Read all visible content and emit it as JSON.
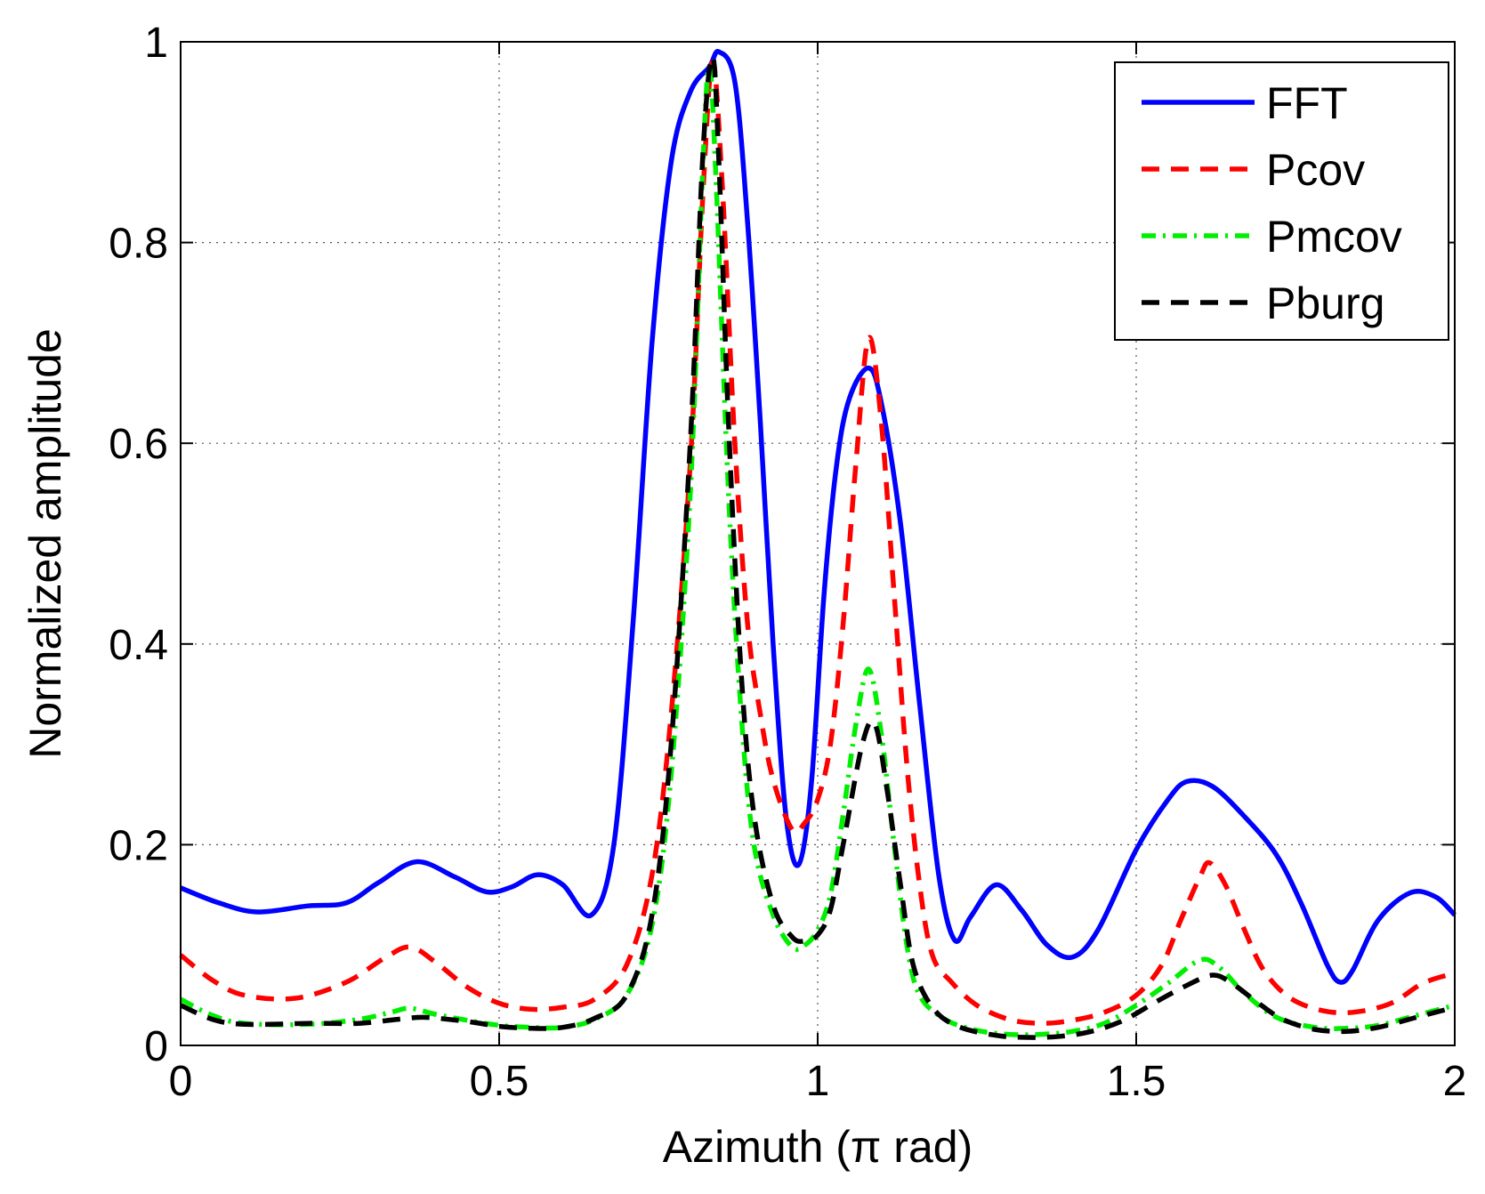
{
  "chart_data": {
    "type": "line",
    "title": "",
    "xlabel": "Azimuth (π rad)",
    "ylabel": "Normalized amplitude",
    "xlim": [
      0,
      2
    ],
    "ylim": [
      0,
      1
    ],
    "xticks": [
      0,
      0.5,
      1,
      1.5,
      2
    ],
    "yticks": [
      0,
      0.2,
      0.4,
      0.6,
      0.8,
      1
    ],
    "xtick_labels": [
      "0",
      "0.5",
      "1",
      "1.5",
      "2"
    ],
    "ytick_labels": [
      "0",
      "0.2",
      "0.4",
      "0.6",
      "0.8",
      "1"
    ],
    "grid": true,
    "legend_position": "top-right",
    "series": [
      {
        "name": "FFT",
        "color": "#0000ff",
        "style": "solid",
        "points": [
          [
            0,
            0.157
          ],
          [
            0.06,
            0.142
          ],
          [
            0.12,
            0.133
          ],
          [
            0.2,
            0.139
          ],
          [
            0.26,
            0.142
          ],
          [
            0.31,
            0.162
          ],
          [
            0.37,
            0.183
          ],
          [
            0.43,
            0.168
          ],
          [
            0.48,
            0.153
          ],
          [
            0.52,
            0.158
          ],
          [
            0.56,
            0.17
          ],
          [
            0.6,
            0.16
          ],
          [
            0.645,
            0.13
          ],
          [
            0.68,
            0.2
          ],
          [
            0.71,
            0.42
          ],
          [
            0.74,
            0.7
          ],
          [
            0.77,
            0.88
          ],
          [
            0.8,
            0.95
          ],
          [
            0.83,
            0.975
          ],
          [
            0.845,
            0.99
          ],
          [
            0.87,
            0.96
          ],
          [
            0.89,
            0.82
          ],
          [
            0.91,
            0.62
          ],
          [
            0.93,
            0.4
          ],
          [
            0.95,
            0.23
          ],
          [
            0.97,
            0.18
          ],
          [
            0.99,
            0.26
          ],
          [
            1.01,
            0.45
          ],
          [
            1.03,
            0.58
          ],
          [
            1.05,
            0.645
          ],
          [
            1.08,
            0.675
          ],
          [
            1.1,
            0.64
          ],
          [
            1.13,
            0.52
          ],
          [
            1.16,
            0.34
          ],
          [
            1.19,
            0.17
          ],
          [
            1.215,
            0.105
          ],
          [
            1.24,
            0.128
          ],
          [
            1.28,
            0.16
          ],
          [
            1.32,
            0.135
          ],
          [
            1.36,
            0.1
          ],
          [
            1.4,
            0.088
          ],
          [
            1.44,
            0.115
          ],
          [
            1.5,
            0.195
          ],
          [
            1.55,
            0.245
          ],
          [
            1.58,
            0.263
          ],
          [
            1.62,
            0.258
          ],
          [
            1.67,
            0.228
          ],
          [
            1.72,
            0.19
          ],
          [
            1.76,
            0.14
          ],
          [
            1.8,
            0.08
          ],
          [
            1.82,
            0.063
          ],
          [
            1.84,
            0.075
          ],
          [
            1.88,
            0.125
          ],
          [
            1.93,
            0.152
          ],
          [
            1.97,
            0.148
          ],
          [
            2,
            0.13
          ]
        ]
      },
      {
        "name": "Pcov",
        "color": "#ff0000",
        "style": "dashed",
        "points": [
          [
            0,
            0.09
          ],
          [
            0.05,
            0.065
          ],
          [
            0.1,
            0.05
          ],
          [
            0.18,
            0.047
          ],
          [
            0.26,
            0.063
          ],
          [
            0.32,
            0.087
          ],
          [
            0.36,
            0.098
          ],
          [
            0.4,
            0.083
          ],
          [
            0.45,
            0.058
          ],
          [
            0.5,
            0.042
          ],
          [
            0.55,
            0.036
          ],
          [
            0.6,
            0.038
          ],
          [
            0.65,
            0.046
          ],
          [
            0.7,
            0.08
          ],
          [
            0.74,
            0.17
          ],
          [
            0.77,
            0.33
          ],
          [
            0.8,
            0.58
          ],
          [
            0.82,
            0.85
          ],
          [
            0.835,
            0.98
          ],
          [
            0.85,
            0.86
          ],
          [
            0.87,
            0.6
          ],
          [
            0.89,
            0.42
          ],
          [
            0.91,
            0.33
          ],
          [
            0.93,
            0.265
          ],
          [
            0.96,
            0.215
          ],
          [
            0.98,
            0.222
          ],
          [
            1.0,
            0.245
          ],
          [
            1.02,
            0.3
          ],
          [
            1.04,
            0.42
          ],
          [
            1.06,
            0.58
          ],
          [
            1.08,
            0.705
          ],
          [
            1.1,
            0.62
          ],
          [
            1.12,
            0.45
          ],
          [
            1.14,
            0.28
          ],
          [
            1.16,
            0.16
          ],
          [
            1.18,
            0.09
          ],
          [
            1.21,
            0.063
          ],
          [
            1.25,
            0.04
          ],
          [
            1.3,
            0.026
          ],
          [
            1.35,
            0.022
          ],
          [
            1.4,
            0.025
          ],
          [
            1.45,
            0.033
          ],
          [
            1.5,
            0.05
          ],
          [
            1.54,
            0.08
          ],
          [
            1.57,
            0.125
          ],
          [
            1.6,
            0.168
          ],
          [
            1.615,
            0.182
          ],
          [
            1.64,
            0.16
          ],
          [
            1.67,
            0.115
          ],
          [
            1.7,
            0.075
          ],
          [
            1.74,
            0.048
          ],
          [
            1.79,
            0.035
          ],
          [
            1.84,
            0.033
          ],
          [
            1.9,
            0.042
          ],
          [
            1.95,
            0.062
          ],
          [
            2,
            0.072
          ]
        ]
      },
      {
        "name": "Pmcov",
        "color": "#00ee00",
        "style": "dashdot",
        "points": [
          [
            0,
            0.046
          ],
          [
            0.05,
            0.03
          ],
          [
            0.1,
            0.022
          ],
          [
            0.2,
            0.021
          ],
          [
            0.28,
            0.026
          ],
          [
            0.33,
            0.033
          ],
          [
            0.36,
            0.037
          ],
          [
            0.4,
            0.031
          ],
          [
            0.45,
            0.025
          ],
          [
            0.5,
            0.02
          ],
          [
            0.55,
            0.018
          ],
          [
            0.6,
            0.018
          ],
          [
            0.65,
            0.026
          ],
          [
            0.7,
            0.05
          ],
          [
            0.74,
            0.12
          ],
          [
            0.77,
            0.27
          ],
          [
            0.8,
            0.55
          ],
          [
            0.82,
            0.88
          ],
          [
            0.83,
            0.975
          ],
          [
            0.84,
            0.87
          ],
          [
            0.86,
            0.55
          ],
          [
            0.88,
            0.33
          ],
          [
            0.9,
            0.2
          ],
          [
            0.93,
            0.13
          ],
          [
            0.96,
            0.098
          ],
          [
            0.98,
            0.1
          ],
          [
            1.0,
            0.115
          ],
          [
            1.02,
            0.15
          ],
          [
            1.04,
            0.23
          ],
          [
            1.06,
            0.32
          ],
          [
            1.08,
            0.375
          ],
          [
            1.1,
            0.31
          ],
          [
            1.12,
            0.2
          ],
          [
            1.14,
            0.1
          ],
          [
            1.16,
            0.05
          ],
          [
            1.2,
            0.026
          ],
          [
            1.25,
            0.015
          ],
          [
            1.3,
            0.011
          ],
          [
            1.35,
            0.011
          ],
          [
            1.4,
            0.014
          ],
          [
            1.45,
            0.022
          ],
          [
            1.5,
            0.04
          ],
          [
            1.55,
            0.062
          ],
          [
            1.6,
            0.085
          ],
          [
            1.63,
            0.078
          ],
          [
            1.67,
            0.052
          ],
          [
            1.72,
            0.028
          ],
          [
            1.78,
            0.018
          ],
          [
            1.83,
            0.017
          ],
          [
            1.88,
            0.02
          ],
          [
            1.94,
            0.03
          ],
          [
            2,
            0.04
          ]
        ]
      },
      {
        "name": "Pburg",
        "color": "#000000",
        "style": "dashed",
        "points": [
          [
            0,
            0.04
          ],
          [
            0.05,
            0.026
          ],
          [
            0.1,
            0.021
          ],
          [
            0.2,
            0.022
          ],
          [
            0.28,
            0.022
          ],
          [
            0.34,
            0.026
          ],
          [
            0.38,
            0.028
          ],
          [
            0.42,
            0.026
          ],
          [
            0.46,
            0.023
          ],
          [
            0.5,
            0.019
          ],
          [
            0.55,
            0.017
          ],
          [
            0.6,
            0.018
          ],
          [
            0.65,
            0.027
          ],
          [
            0.7,
            0.05
          ],
          [
            0.74,
            0.13
          ],
          [
            0.77,
            0.3
          ],
          [
            0.8,
            0.6
          ],
          [
            0.82,
            0.89
          ],
          [
            0.835,
            0.985
          ],
          [
            0.845,
            0.88
          ],
          [
            0.86,
            0.62
          ],
          [
            0.88,
            0.37
          ],
          [
            0.9,
            0.23
          ],
          [
            0.93,
            0.14
          ],
          [
            0.96,
            0.108
          ],
          [
            0.98,
            0.104
          ],
          [
            1.0,
            0.11
          ],
          [
            1.02,
            0.135
          ],
          [
            1.04,
            0.2
          ],
          [
            1.07,
            0.3
          ],
          [
            1.09,
            0.32
          ],
          [
            1.11,
            0.25
          ],
          [
            1.13,
            0.16
          ],
          [
            1.15,
            0.08
          ],
          [
            1.18,
            0.038
          ],
          [
            1.22,
            0.019
          ],
          [
            1.28,
            0.01
          ],
          [
            1.33,
            0.008
          ],
          [
            1.38,
            0.009
          ],
          [
            1.43,
            0.014
          ],
          [
            1.48,
            0.025
          ],
          [
            1.53,
            0.043
          ],
          [
            1.58,
            0.06
          ],
          [
            1.62,
            0.07
          ],
          [
            1.65,
            0.062
          ],
          [
            1.69,
            0.043
          ],
          [
            1.73,
            0.026
          ],
          [
            1.78,
            0.016
          ],
          [
            1.83,
            0.014
          ],
          [
            1.88,
            0.018
          ],
          [
            1.94,
            0.028
          ],
          [
            2,
            0.038
          ]
        ]
      }
    ]
  }
}
